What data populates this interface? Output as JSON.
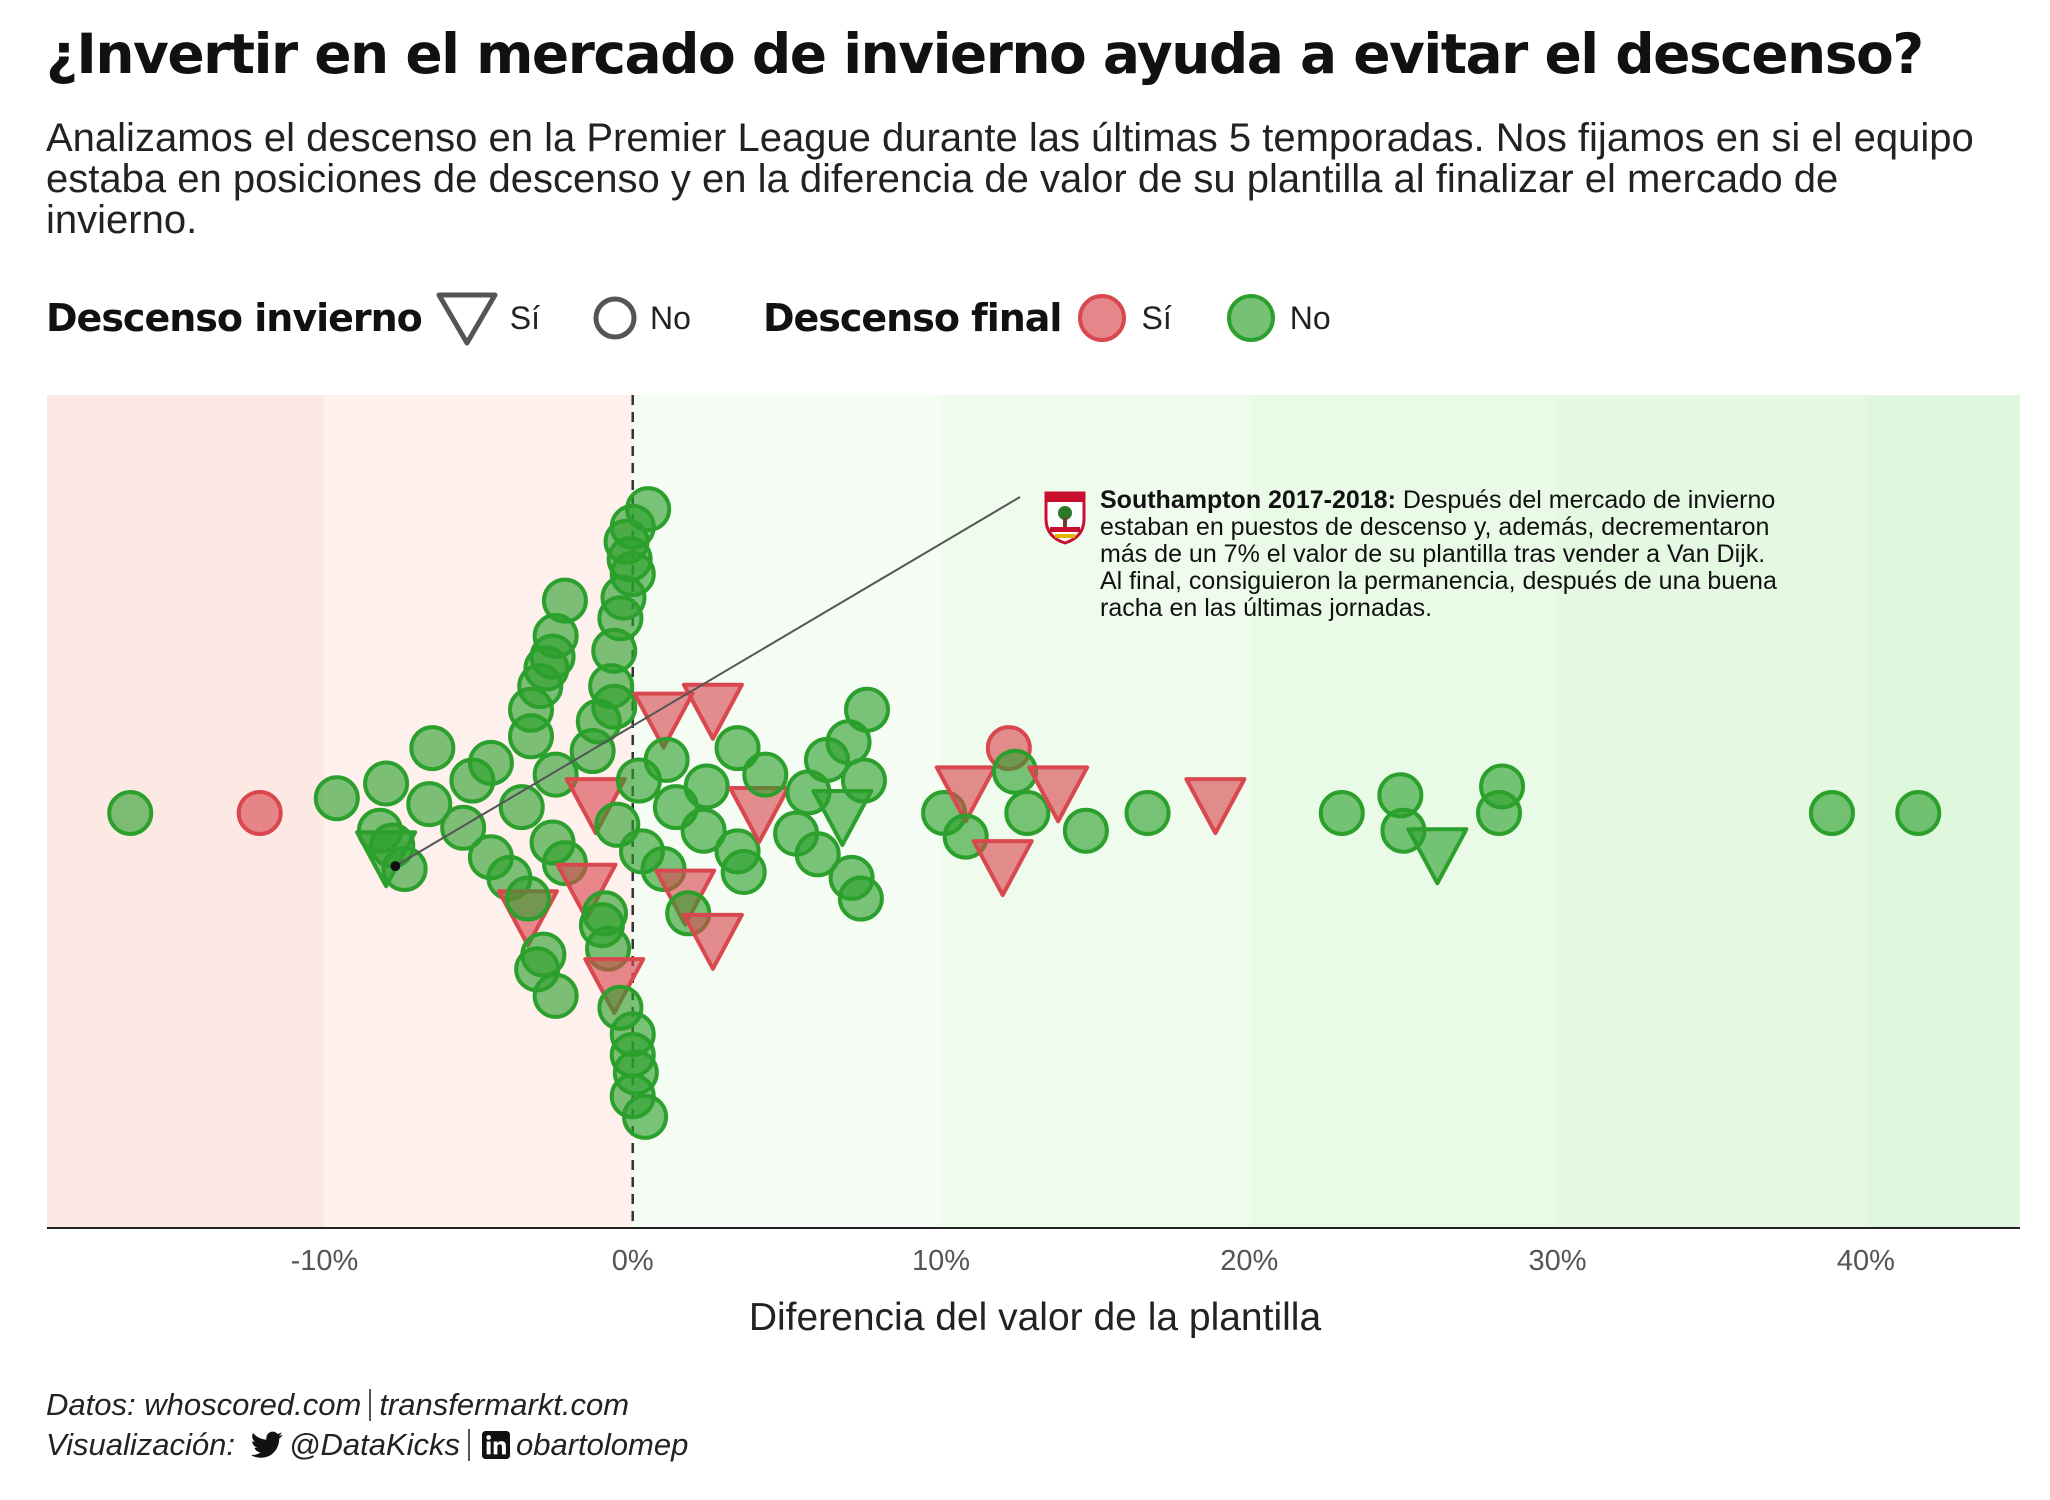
{
  "chart_data": {
    "type": "scatter",
    "title": "¿Invertir en el mercado de invierno ayuda a evitar el descenso?",
    "subtitle": "Analizamos el descenso en la Premier League durante las últimas 5 temporadas. Nos fijamos en si el equipo estaba en posiciones de descenso y en la diferencia de valor de su plantilla al finalizar el mercado de invierno.",
    "xlabel": "Diferencia del valor de la plantilla",
    "ylabel": "",
    "xlim": [
      -19,
      45
    ],
    "x_ticks": [
      "-10%",
      "0%",
      "10%",
      "20%",
      "30%",
      "40%"
    ],
    "x_tick_values": [
      -10,
      0,
      10,
      20,
      30,
      40
    ],
    "colors": {
      "relegated": "#d9474f",
      "not_relegated": "#2ca02c",
      "background_negative": "#fde9e4",
      "background_positive": "#dff7dc"
    },
    "legend": {
      "winter_title": "Descenso invierno",
      "winter_yes": "Sí",
      "winter_no": "No",
      "final_title": "Descenso final",
      "final_yes": "Sí",
      "final_no": "No"
    },
    "points": [
      {
        "x": -16.3,
        "row": 0,
        "shape": "circle",
        "relegated": false
      },
      {
        "x": -12.1,
        "row": 0,
        "shape": "circle",
        "relegated": true
      },
      {
        "x": -9.6,
        "row": 0.5,
        "shape": "circle",
        "relegated": false
      },
      {
        "x": -8.2,
        "row": -0.6,
        "shape": "circle",
        "relegated": false
      },
      {
        "x": -8.0,
        "row": 1.0,
        "shape": "circle",
        "relegated": false
      },
      {
        "x": -8.0,
        "row": -1.5,
        "shape": "triangle",
        "relegated": false
      },
      {
        "x": -7.8,
        "row": -1.1,
        "shape": "circle",
        "relegated": false
      },
      {
        "x": -7.4,
        "row": -1.9,
        "shape": "circle",
        "relegated": false
      },
      {
        "x": -6.5,
        "row": 2.2,
        "shape": "circle",
        "relegated": false
      },
      {
        "x": -6.6,
        "row": 0.3,
        "shape": "circle",
        "relegated": false
      },
      {
        "x": -5.5,
        "row": -0.5,
        "shape": "circle",
        "relegated": false
      },
      {
        "x": -5.2,
        "row": 1.1,
        "shape": "circle",
        "relegated": false
      },
      {
        "x": -4.6,
        "row": 1.7,
        "shape": "circle",
        "relegated": false
      },
      {
        "x": -4.6,
        "row": -1.5,
        "shape": "circle",
        "relegated": false
      },
      {
        "x": -4.0,
        "row": -2.2,
        "shape": "circle",
        "relegated": false
      },
      {
        "x": -3.6,
        "row": 0.2,
        "shape": "circle",
        "relegated": false
      },
      {
        "x": -3.4,
        "row": -3.5,
        "shape": "triangle",
        "relegated": true
      },
      {
        "x": -3.4,
        "row": -2.9,
        "shape": "circle",
        "relegated": false
      },
      {
        "x": -3.3,
        "row": 2.6,
        "shape": "circle",
        "relegated": false
      },
      {
        "x": -3.3,
        "row": 3.5,
        "shape": "circle",
        "relegated": false
      },
      {
        "x": -3.1,
        "row": -5.3,
        "shape": "circle",
        "relegated": false
      },
      {
        "x": -3.0,
        "row": 4.3,
        "shape": "circle",
        "relegated": false
      },
      {
        "x": -2.9,
        "row": -4.8,
        "shape": "circle",
        "relegated": false
      },
      {
        "x": -2.8,
        "row": 4.9,
        "shape": "circle",
        "relegated": false
      },
      {
        "x": -2.6,
        "row": 5.3,
        "shape": "circle",
        "relegated": false
      },
      {
        "x": -2.6,
        "row": -1.0,
        "shape": "circle",
        "relegated": false
      },
      {
        "x": -2.5,
        "row": 1.3,
        "shape": "circle",
        "relegated": false
      },
      {
        "x": -2.5,
        "row": 6.0,
        "shape": "circle",
        "relegated": false
      },
      {
        "x": -2.5,
        "row": -6.2,
        "shape": "circle",
        "relegated": false
      },
      {
        "x": -2.2,
        "row": 7.2,
        "shape": "circle",
        "relegated": false
      },
      {
        "x": -2.2,
        "row": -1.7,
        "shape": "circle",
        "relegated": false
      },
      {
        "x": -1.5,
        "row": -2.6,
        "shape": "triangle",
        "relegated": true
      },
      {
        "x": -1.3,
        "row": 2.1,
        "shape": "circle",
        "relegated": false
      },
      {
        "x": -1.2,
        "row": 0.3,
        "shape": "triangle",
        "relegated": true
      },
      {
        "x": -1.1,
        "row": 3.1,
        "shape": "circle",
        "relegated": false
      },
      {
        "x": -1.0,
        "row": -3.8,
        "shape": "circle",
        "relegated": false
      },
      {
        "x": -0.9,
        "row": -3.4,
        "shape": "circle",
        "relegated": false
      },
      {
        "x": -0.8,
        "row": -4.6,
        "shape": "circle",
        "relegated": false
      },
      {
        "x": -0.7,
        "row": 4.3,
        "shape": "circle",
        "relegated": false
      },
      {
        "x": -0.6,
        "row": 5.5,
        "shape": "circle",
        "relegated": false
      },
      {
        "x": -0.6,
        "row": -5.8,
        "shape": "triangle",
        "relegated": true
      },
      {
        "x": -0.6,
        "row": 3.6,
        "shape": "circle",
        "relegated": false
      },
      {
        "x": -0.5,
        "row": -0.4,
        "shape": "circle",
        "relegated": false
      },
      {
        "x": -0.4,
        "row": 6.6,
        "shape": "circle",
        "relegated": false
      },
      {
        "x": -0.4,
        "row": -6.6,
        "shape": "circle",
        "relegated": false
      },
      {
        "x": -0.3,
        "row": 7.3,
        "shape": "circle",
        "relegated": false
      },
      {
        "x": -0.2,
        "row": 9.2,
        "shape": "circle",
        "relegated": false
      },
      {
        "x": -0.1,
        "row": 8.6,
        "shape": "circle",
        "relegated": false
      },
      {
        "x": 0.0,
        "row": 8.1,
        "shape": "circle",
        "relegated": false
      },
      {
        "x": 0.0,
        "row": -7.5,
        "shape": "circle",
        "relegated": false
      },
      {
        "x": 0.0,
        "row": -8.2,
        "shape": "circle",
        "relegated": false
      },
      {
        "x": 0.0,
        "row": -9.6,
        "shape": "circle",
        "relegated": false
      },
      {
        "x": 0.0,
        "row": 9.7,
        "shape": "circle",
        "relegated": false
      },
      {
        "x": 0.1,
        "row": -8.8,
        "shape": "circle",
        "relegated": false
      },
      {
        "x": 0.2,
        "row": 1.1,
        "shape": "circle",
        "relegated": false
      },
      {
        "x": 0.3,
        "row": -1.3,
        "shape": "circle",
        "relegated": false
      },
      {
        "x": 0.4,
        "row": -10.3,
        "shape": "circle",
        "relegated": false
      },
      {
        "x": 0.5,
        "row": 10.3,
        "shape": "circle",
        "relegated": false
      },
      {
        "x": 1.0,
        "row": 3.2,
        "shape": "triangle",
        "relegated": true
      },
      {
        "x": 1.0,
        "row": -1.9,
        "shape": "circle",
        "relegated": false
      },
      {
        "x": 1.1,
        "row": 1.8,
        "shape": "circle",
        "relegated": false
      },
      {
        "x": 1.4,
        "row": 0.2,
        "shape": "circle",
        "relegated": false
      },
      {
        "x": 1.7,
        "row": -2.8,
        "shape": "triangle",
        "relegated": true
      },
      {
        "x": 1.8,
        "row": -3.4,
        "shape": "circle",
        "relegated": false
      },
      {
        "x": 2.3,
        "row": -0.6,
        "shape": "circle",
        "relegated": false
      },
      {
        "x": 2.4,
        "row": 0.9,
        "shape": "circle",
        "relegated": false
      },
      {
        "x": 2.6,
        "row": 3.5,
        "shape": "triangle",
        "relegated": true
      },
      {
        "x": 2.6,
        "row": -4.3,
        "shape": "triangle",
        "relegated": true
      },
      {
        "x": 3.4,
        "row": -1.3,
        "shape": "circle",
        "relegated": false
      },
      {
        "x": 3.4,
        "row": 2.2,
        "shape": "circle",
        "relegated": false
      },
      {
        "x": 3.6,
        "row": -2.0,
        "shape": "circle",
        "relegated": false
      },
      {
        "x": 4.1,
        "row": 0.0,
        "shape": "triangle",
        "relegated": true
      },
      {
        "x": 4.3,
        "row": 1.3,
        "shape": "circle",
        "relegated": false
      },
      {
        "x": 5.3,
        "row": -0.7,
        "shape": "circle",
        "relegated": false
      },
      {
        "x": 5.7,
        "row": 0.7,
        "shape": "circle",
        "relegated": false
      },
      {
        "x": 6.0,
        "row": -1.4,
        "shape": "circle",
        "relegated": false
      },
      {
        "x": 6.3,
        "row": 1.8,
        "shape": "circle",
        "relegated": false
      },
      {
        "x": 6.8,
        "row": -0.1,
        "shape": "triangle",
        "relegated": false
      },
      {
        "x": 7.0,
        "row": 2.4,
        "shape": "circle",
        "relegated": false
      },
      {
        "x": 7.1,
        "row": -2.2,
        "shape": "circle",
        "relegated": false
      },
      {
        "x": 7.4,
        "row": -2.9,
        "shape": "circle",
        "relegated": false
      },
      {
        "x": 7.5,
        "row": 1.1,
        "shape": "circle",
        "relegated": false
      },
      {
        "x": 7.6,
        "row": 3.5,
        "shape": "circle",
        "relegated": false
      },
      {
        "x": 10.1,
        "row": 0.0,
        "shape": "circle",
        "relegated": false
      },
      {
        "x": 10.8,
        "row": 0.7,
        "shape": "triangle",
        "relegated": true
      },
      {
        "x": 10.8,
        "row": -0.8,
        "shape": "circle",
        "relegated": false
      },
      {
        "x": 12.0,
        "row": -1.8,
        "shape": "triangle",
        "relegated": true
      },
      {
        "x": 12.2,
        "row": 2.2,
        "shape": "circle",
        "relegated": true
      },
      {
        "x": 12.4,
        "row": 1.4,
        "shape": "circle",
        "relegated": false
      },
      {
        "x": 12.8,
        "row": 0.0,
        "shape": "circle",
        "relegated": false
      },
      {
        "x": 13.8,
        "row": 0.7,
        "shape": "triangle",
        "relegated": true
      },
      {
        "x": 14.7,
        "row": -0.6,
        "shape": "circle",
        "relegated": false
      },
      {
        "x": 16.7,
        "row": 0.0,
        "shape": "circle",
        "relegated": false
      },
      {
        "x": 18.9,
        "row": 0.3,
        "shape": "triangle",
        "relegated": true
      },
      {
        "x": 23.0,
        "row": 0.0,
        "shape": "circle",
        "relegated": false
      },
      {
        "x": 24.9,
        "row": 0.6,
        "shape": "circle",
        "relegated": false
      },
      {
        "x": 25.0,
        "row": -0.6,
        "shape": "circle",
        "relegated": false
      },
      {
        "x": 26.1,
        "row": -1.4,
        "shape": "triangle",
        "relegated": false
      },
      {
        "x": 28.1,
        "row": 0.0,
        "shape": "circle",
        "relegated": false
      },
      {
        "x": 28.2,
        "row": 0.9,
        "shape": "circle",
        "relegated": false
      },
      {
        "x": 38.9,
        "row": 0.0,
        "shape": "circle",
        "relegated": false
      },
      {
        "x": 41.7,
        "row": 0.0,
        "shape": "circle",
        "relegated": false
      }
    ],
    "annotation": {
      "target_x": -7.7,
      "target_row": -1.8,
      "bold": "Southampton 2017-2018:",
      "text": "Después del mercado de invierno estaban en puestos de descenso y, además, decrementaron más de un 7% el valor de su plantilla tras vender a Van Dijk. Al final, consiguieron la permanencia, después de una buena racha en las últimas jornadas."
    }
  },
  "caption": {
    "line1_prefix": "Datos: whoscored.com",
    "line1_suffix": "transfermarkt.com",
    "line2_prefix": "Visualización:",
    "twitter": "@DataKicks",
    "linkedin": "obartolomep"
  }
}
